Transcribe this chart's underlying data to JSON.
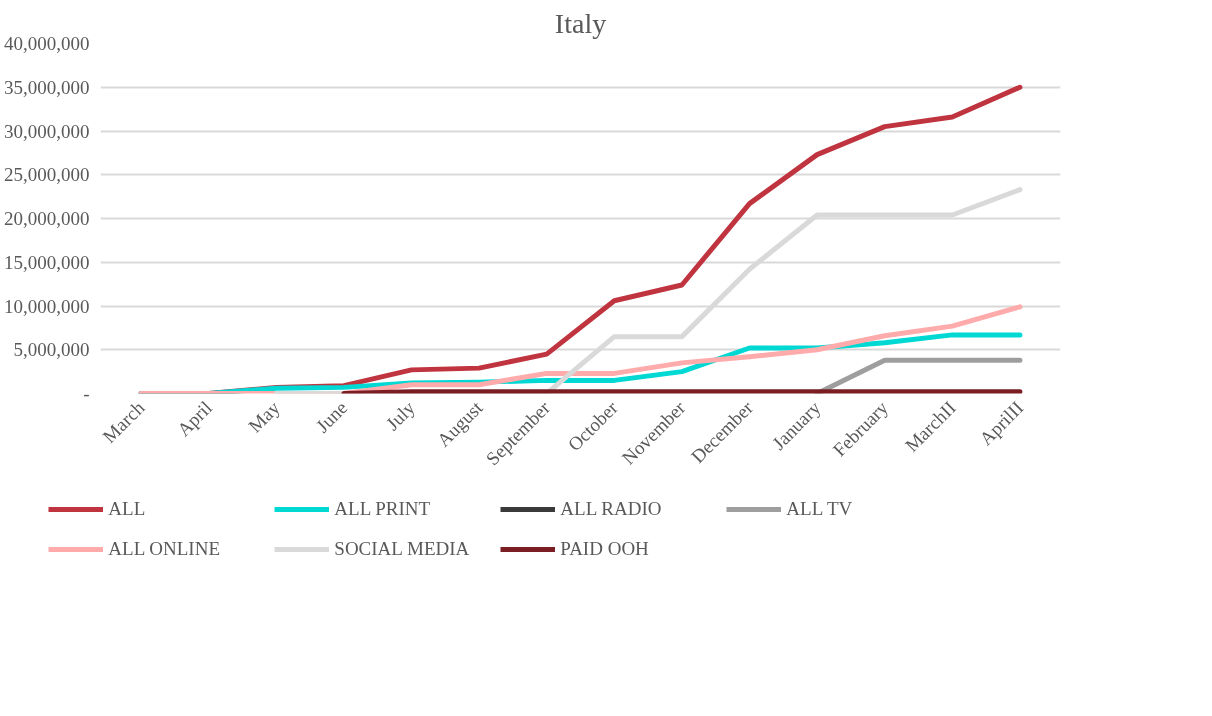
{
  "chart_data": {
    "type": "line",
    "title": "Italy",
    "categories": [
      "March",
      "April",
      "May",
      "June",
      "July",
      "August",
      "September",
      "October",
      "November",
      "December",
      "January",
      "February",
      "MarchII",
      "AprilII"
    ],
    "series": [
      {
        "name": "ALL",
        "color": "#c0343f",
        "values": [
          0,
          0,
          700000,
          900000,
          2700000,
          2900000,
          4500000,
          10600000,
          12400000,
          21700000,
          27300000,
          30500000,
          31600000,
          35000000
        ]
      },
      {
        "name": "ALL PRINT",
        "color": "#00d8d4",
        "values": [
          0,
          0,
          600000,
          700000,
          1200000,
          1300000,
          1500000,
          1500000,
          2500000,
          5200000,
          5200000,
          5800000,
          6700000,
          6700000
        ]
      },
      {
        "name": "ALL RADIO",
        "color": "#3a3a3a",
        "values": [
          null,
          null,
          null,
          null,
          null,
          null,
          null,
          null,
          null,
          null,
          null,
          null,
          null,
          null
        ]
      },
      {
        "name": "ALL TV",
        "color": "#9e9e9e",
        "values": [
          null,
          null,
          null,
          null,
          null,
          null,
          null,
          null,
          null,
          null,
          0,
          3800000,
          3800000,
          3800000
        ]
      },
      {
        "name": "ALL ONLINE",
        "color": "#ffabab",
        "values": [
          0,
          0,
          0,
          0,
          1000000,
          1000000,
          2300000,
          2300000,
          3500000,
          4200000,
          5000000,
          6600000,
          7700000,
          9900000
        ]
      },
      {
        "name": "SOCIAL MEDIA",
        "color": "#d9d9d9",
        "values": [
          null,
          null,
          0,
          0,
          0,
          0,
          0,
          6500000,
          6500000,
          14200000,
          20400000,
          20400000,
          20400000,
          23300000
        ]
      },
      {
        "name": "PAID OOH",
        "color": "#7a1e24",
        "values": [
          null,
          null,
          null,
          0,
          200000,
          200000,
          200000,
          200000,
          200000,
          200000,
          200000,
          200000,
          200000,
          200000
        ]
      }
    ],
    "ylim": [
      0,
      40000000
    ],
    "yticks": [
      {
        "value": 0,
        "label": "-"
      },
      {
        "value": 5000000,
        "label": "5,000,000"
      },
      {
        "value": 10000000,
        "label": "10,000,000"
      },
      {
        "value": 15000000,
        "label": "15,000,000"
      },
      {
        "value": 20000000,
        "label": "20,000,000"
      },
      {
        "value": 25000000,
        "label": "25,000,000"
      },
      {
        "value": 30000000,
        "label": "30,000,000"
      },
      {
        "value": 35000000,
        "label": "35,000,000"
      },
      {
        "value": 40000000,
        "label": "40,000,000"
      }
    ],
    "grid": "y",
    "legend": "bottom",
    "line_style": "solid",
    "marker": "none"
  }
}
